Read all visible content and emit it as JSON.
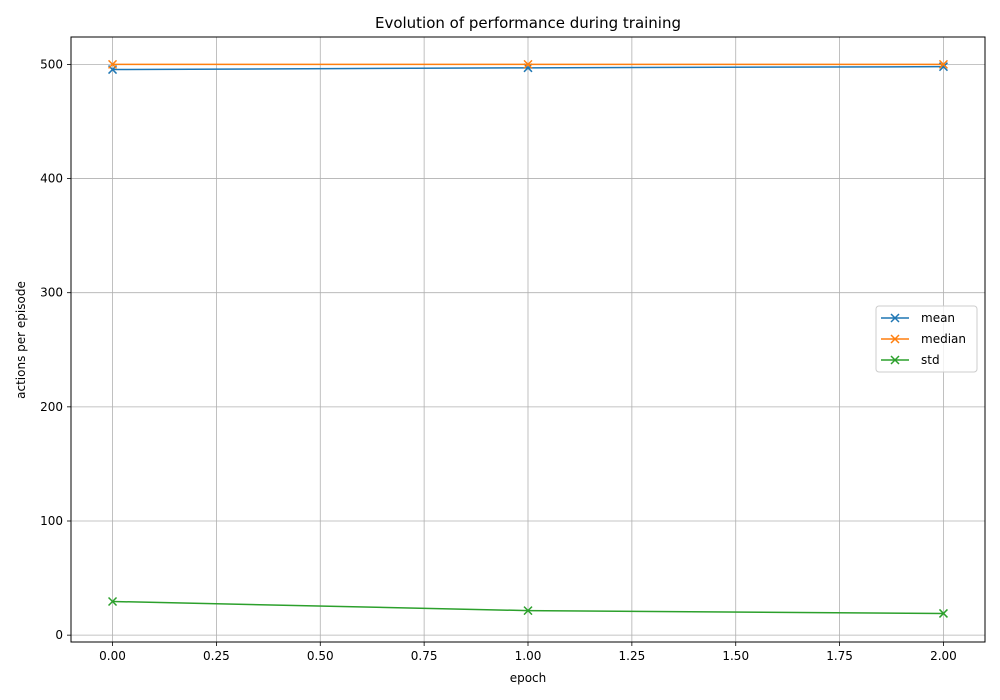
{
  "chart_data": {
    "type": "line",
    "title": "Evolution of performance during training",
    "xlabel": "epoch",
    "ylabel": "actions per episode",
    "x": [
      0,
      1,
      2
    ],
    "xlim": [
      -0.1,
      2.1
    ],
    "ylim": [
      -6,
      524
    ],
    "xticks": [
      "0.00",
      "0.25",
      "0.50",
      "0.75",
      "1.00",
      "1.25",
      "1.50",
      "1.75",
      "2.00"
    ],
    "yticks": [
      "0",
      "100",
      "200",
      "300",
      "400",
      "500"
    ],
    "grid": true,
    "legend_position": "center-right",
    "marker": "x",
    "series": [
      {
        "name": "mean",
        "color": "#1f77b4",
        "values": [
          495.5,
          497.0,
          498.0
        ]
      },
      {
        "name": "median",
        "color": "#ff7f0e",
        "values": [
          500,
          500,
          500
        ]
      },
      {
        "name": "std",
        "color": "#2ca02c",
        "values": [
          29.5,
          21.5,
          19.0
        ]
      }
    ]
  }
}
